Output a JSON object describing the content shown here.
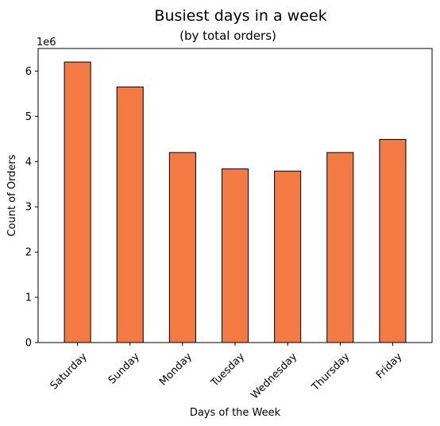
{
  "chart_data": {
    "type": "bar",
    "title": "Busiest days in a week",
    "subtitle": "(by total orders)",
    "xlabel": "Days of the Week",
    "ylabel": "Count of Orders",
    "y_offset_label": "1e6",
    "categories": [
      "Saturday",
      "Sunday",
      "Monday",
      "Tuesday",
      "Wednesday",
      "Thursday",
      "Friday"
    ],
    "values": [
      6.2,
      5.65,
      4.2,
      3.84,
      3.79,
      4.2,
      4.49
    ],
    "value_scale": 1000000,
    "ylim": [
      0,
      6.5
    ],
    "yticks": [
      "0",
      "1",
      "2",
      "3",
      "4",
      "5",
      "6"
    ],
    "grid": false,
    "bar_color": "#f47a44",
    "bar_edge_color": "#000000"
  }
}
